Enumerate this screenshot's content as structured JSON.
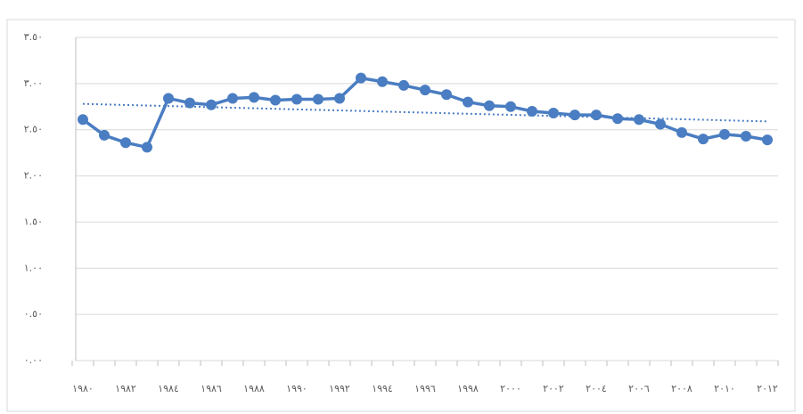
{
  "chart_data": {
    "type": "line",
    "categories": [
      "١٩٨٠",
      null,
      "١٩٨٢",
      null,
      "١٩٨٤",
      null,
      "١٩٨٦",
      null,
      "١٩٨٨",
      null,
      "١٩٩٠",
      null,
      "١٩٩٢",
      null,
      "١٩٩٤",
      null,
      "١٩٩٦",
      null,
      "١٩٩٨",
      null,
      "٢٠٠٠",
      null,
      "٢٠٠٢",
      null,
      "٢٠٠٤",
      null,
      "٢٠٠٦",
      null,
      "٢٠٠٨",
      null,
      "٢٠١٠",
      null,
      "٢٠١٢"
    ],
    "values": [
      2.61,
      2.44,
      2.36,
      2.31,
      2.84,
      2.79,
      2.77,
      2.84,
      2.85,
      2.82,
      2.83,
      2.83,
      2.84,
      3.06,
      3.02,
      2.98,
      2.93,
      2.88,
      2.8,
      2.76,
      2.75,
      2.7,
      2.68,
      2.66,
      2.66,
      2.62,
      2.61,
      2.56,
      2.47,
      2.4,
      2.45,
      2.43,
      2.39
    ],
    "color": "#4a7dc2",
    "trend": {
      "values": [
        2.78,
        2.59
      ],
      "color": "#4a7dc2"
    },
    "ylim": [
      0,
      3.5
    ],
    "yticks": [
      {
        "value": 0,
        "label": "٠.٠٠"
      },
      {
        "value": 0.5,
        "label": "٠.٥٠"
      },
      {
        "value": 1,
        "label": "١.٠٠"
      },
      {
        "value": 1.5,
        "label": "١.٥٠"
      },
      {
        "value": 2,
        "label": "٢.٠٠"
      },
      {
        "value": 2.5,
        "label": "٢.٥٠"
      },
      {
        "value": 3,
        "label": "٣.٠٠"
      },
      {
        "value": 3.5,
        "label": "٣.٥٠"
      }
    ],
    "grid": true
  }
}
